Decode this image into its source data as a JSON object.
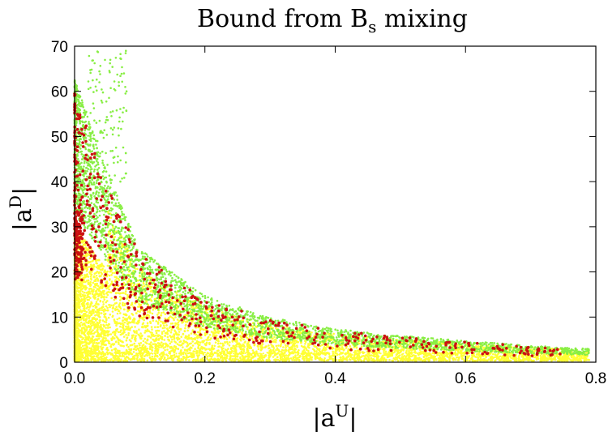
{
  "chart_data": {
    "type": "scatter",
    "title": {
      "main": "Bound from B",
      "sub": "s",
      "tail": " mixing"
    },
    "xlabel": {
      "prefix": "|a",
      "sup": "U",
      "suffix": "|"
    },
    "ylabel": {
      "prefix": "|a",
      "sup": "D",
      "suffix": "|"
    },
    "xlim": [
      0.0,
      0.8
    ],
    "ylim": [
      0,
      70
    ],
    "xticks": [
      "0.0",
      "0.2",
      "0.4",
      "0.6",
      "0.8"
    ],
    "yticks": [
      "0",
      "10",
      "20",
      "30",
      "40",
      "50",
      "60",
      "70"
    ],
    "grid": false,
    "legend": "none",
    "series": [
      {
        "color": "#ffff33",
        "description": "dense band below the boundary",
        "region": "envelope-lower",
        "approx_points": 6000
      },
      {
        "color": "#88ee44",
        "description": "points along the upper envelope",
        "region": "envelope-upper",
        "approx_points": 3000
      },
      {
        "color": "#cc1111",
        "description": "sparse points scattered near the envelope",
        "region": "mixed",
        "approx_points": 550
      }
    ],
    "envelope": {
      "x": [
        0.0,
        0.02,
        0.05,
        0.1,
        0.2,
        0.3,
        0.4,
        0.5,
        0.6,
        0.7,
        0.79
      ],
      "y": [
        60,
        52,
        40,
        24,
        14,
        9.5,
        7.0,
        5.6,
        4.5,
        3.5,
        2.8
      ]
    },
    "floor_line_y": 2
  }
}
